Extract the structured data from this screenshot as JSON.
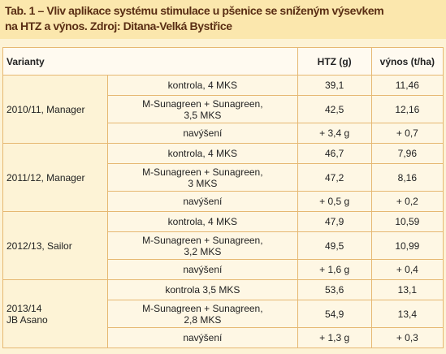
{
  "title_lines": [
    "Tab. 1 – Vliv aplikace systému stimulace u pšenice se sníženým výsevkem",
    "na HTZ a výnos. Zdroj: Ditana-Velká Bystřice"
  ],
  "table": {
    "header": [
      "Varianty",
      "HTZ (g)",
      "výnos (t/ha)"
    ],
    "groups": [
      {
        "label": "2010/11, Manager",
        "rows": [
          [
            "kontrola, 4 MKS",
            "39,1",
            "11,46"
          ],
          [
            "M-Sunagreen + Sunagreen,\n3,5 MKS",
            "42,5",
            "12,16"
          ],
          [
            "navýšení",
            "+ 3,4 g",
            "+ 0,7"
          ]
        ]
      },
      {
        "label": "2011/12, Manager",
        "rows": [
          [
            "kontrola, 4 MKS",
            "46,7",
            "7,96"
          ],
          [
            "M-Sunagreen + Sunagreen,\n3 MKS",
            "47,2",
            "8,16"
          ],
          [
            "navýšení",
            "+ 0,5 g",
            "+ 0,2"
          ]
        ]
      },
      {
        "label": "2012/13, Sailor",
        "rows": [
          [
            "kontrola, 4 MKS",
            "47,9",
            "10,59"
          ],
          [
            "M-Sunagreen + Sunagreen,\n3,2 MKS",
            "49,5",
            "10,99"
          ],
          [
            "navýšení",
            "+ 1,6 g",
            "+ 0,4"
          ]
        ]
      },
      {
        "label": "2013/14\nJB Asano",
        "rows": [
          [
            "kontrola 3,5 MKS",
            "53,6",
            "13,1"
          ],
          [
            "M-Sunagreen + Sunagreen,\n2,8 MKS",
            "54,9",
            "13,4"
          ],
          [
            "navýšení",
            "+ 1,3 g",
            "+ 0,3"
          ]
        ]
      }
    ]
  }
}
